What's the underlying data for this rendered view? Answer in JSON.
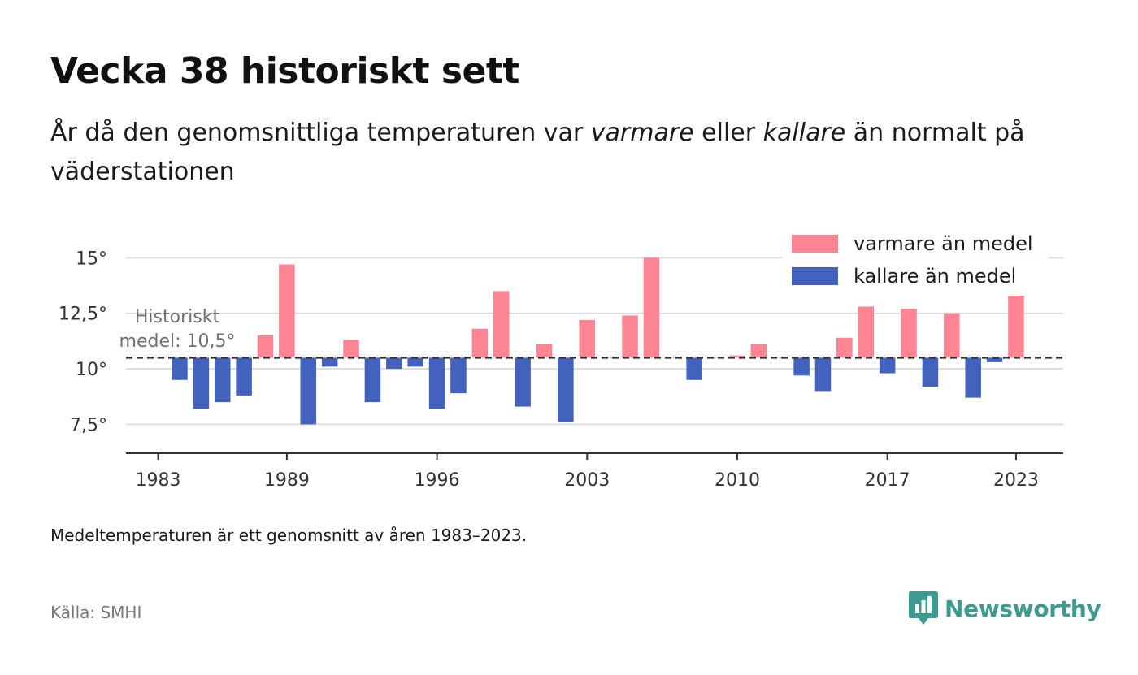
{
  "title": "Vecka 38 historiskt sett",
  "subtitle": {
    "part1": "År då den genomsnittliga temperaturen var ",
    "warm_word": "varmare",
    "part2": " eller ",
    "cold_word": "kallare",
    "part3": " än normalt på väderstationen"
  },
  "note": "Medeltemperaturen är ett genomsnitt av åren 1983–2023.",
  "source": "Källa: SMHI",
  "brand": {
    "name": "Newsworthy",
    "icon": "newsworthy-logo-icon",
    "color": "#3d9a8f"
  },
  "colors": {
    "warm": "#fd8492",
    "cold": "#4262bd",
    "grid": "#dddddd",
    "axis": "#333333",
    "mean_line": "#333333"
  },
  "chart_data": {
    "type": "bar",
    "baseline": 10.5,
    "baseline_label": [
      "Historiskt",
      "medel: 10,5°"
    ],
    "ylim": [
      6.2,
      16
    ],
    "yticks": [
      7.5,
      10,
      12.5,
      15
    ],
    "ytick_labels": [
      "7,5°",
      "10°",
      "12,5°",
      "15°"
    ],
    "xlim": [
      1981.5,
      2025.2
    ],
    "xticks": [
      1983,
      1989,
      1996,
      2003,
      2010,
      2017,
      2023
    ],
    "xtick_labels": [
      "1983",
      "1989",
      "1996",
      "2003",
      "2010",
      "2017",
      "2023"
    ],
    "grid": true,
    "legend": {
      "placement": "top-right",
      "warm_label": "varmare än medel",
      "cold_label": "kallare än medel"
    },
    "years": [
      1983,
      1984,
      1985,
      1986,
      1987,
      1988,
      1989,
      1990,
      1991,
      1992,
      1993,
      1994,
      1995,
      1996,
      1997,
      1998,
      1999,
      2000,
      2001,
      2002,
      2003,
      2004,
      2005,
      2006,
      2007,
      2008,
      2009,
      2010,
      2011,
      2012,
      2013,
      2014,
      2015,
      2016,
      2017,
      2018,
      2019,
      2020,
      2021,
      2022,
      2023
    ],
    "values": [
      10.5,
      9.5,
      8.2,
      8.5,
      8.8,
      11.5,
      14.7,
      7.5,
      10.1,
      11.3,
      8.5,
      10.0,
      10.1,
      8.2,
      8.9,
      11.8,
      13.5,
      8.3,
      11.1,
      7.6,
      12.2,
      10.5,
      12.4,
      15.0,
      10.5,
      9.5,
      10.5,
      10.6,
      11.1,
      10.5,
      9.7,
      9.0,
      11.4,
      12.8,
      9.8,
      12.7,
      9.2,
      12.5,
      8.7,
      10.3,
      13.3
    ]
  }
}
